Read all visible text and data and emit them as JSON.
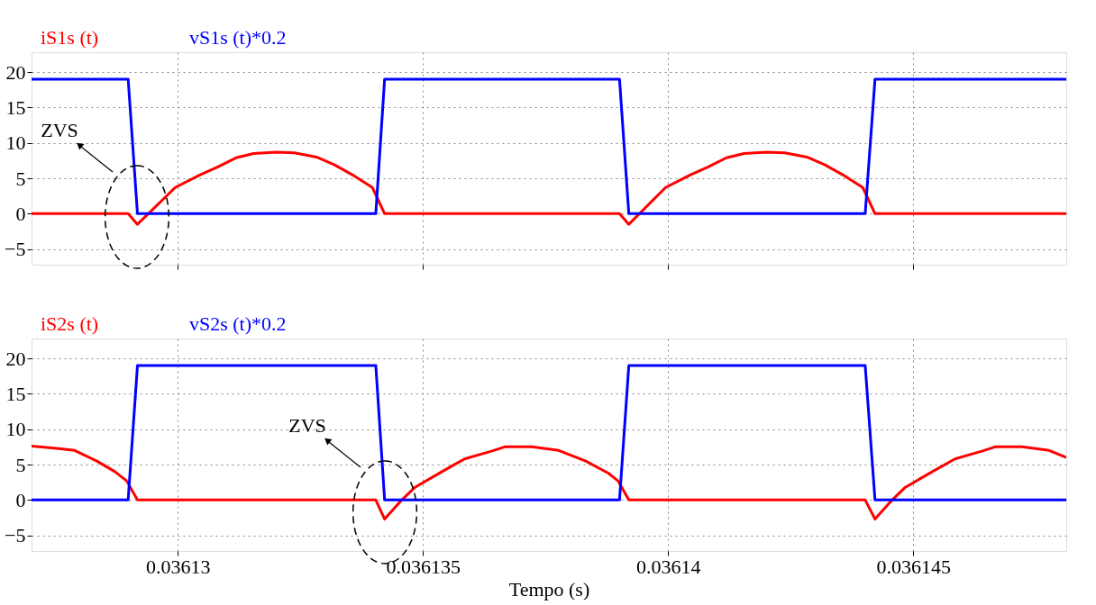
{
  "chart_data": [
    {
      "type": "line",
      "xlim": [
        0.03612702,
        0.03614812
      ],
      "ylim": [
        -7.2,
        22.8
      ],
      "xticks": [
        0.03613,
        0.036135,
        0.03614,
        0.036145
      ],
      "yticks": [
        -5,
        0,
        5,
        10,
        15,
        20
      ],
      "grid": true,
      "tick_labels": "y",
      "line_style": "solid",
      "series": [
        {
          "name": "iS1s (t)",
          "color": "#ff0000",
          "x": [
            0.03612702,
            0.03612899,
            0.03612918,
            0.03612995,
            0.03613046,
            0.03613082,
            0.03613119,
            0.03613155,
            0.03613201,
            0.03613238,
            0.03613283,
            0.0361332,
            0.03613356,
            0.03613397,
            0.03613422,
            0.03613901,
            0.0361392,
            0.03613995,
            0.03614046,
            0.03614082,
            0.03614119,
            0.03614155,
            0.03614201,
            0.03614238,
            0.03614283,
            0.0361432,
            0.03614356,
            0.03614397,
            0.03614422,
            0.03614812
          ],
          "values": [
            0,
            0,
            -1.5,
            3.7,
            5.5,
            6.6,
            7.9,
            8.5,
            8.7,
            8.6,
            8.0,
            6.9,
            5.5,
            3.7,
            0,
            0,
            -1.5,
            3.7,
            5.5,
            6.6,
            7.9,
            8.5,
            8.7,
            8.6,
            8.0,
            6.9,
            5.5,
            3.7,
            0,
            0
          ]
        },
        {
          "name": "vS1s (t)*0.2",
          "color": "#0000ff",
          "x": [
            0.03612702,
            0.03612899,
            0.03612918,
            0.03613404,
            0.03613422,
            0.03613901,
            0.0361392,
            0.03614402,
            0.03614422,
            0.03614812
          ],
          "values": [
            19,
            19,
            0,
            0,
            19,
            19,
            0,
            0,
            19,
            19
          ]
        }
      ],
      "annotations": [
        "ZVS"
      ]
    },
    {
      "type": "line",
      "xlabel": "Tempo (s)",
      "xlim": [
        0.03612702,
        0.03614812
      ],
      "ylim": [
        -7.2,
        22.8
      ],
      "xticks": [
        0.03613,
        0.036135,
        0.03614,
        0.036145
      ],
      "yticks": [
        -5,
        0,
        5,
        10,
        15,
        20
      ],
      "grid": true,
      "line_style": "solid",
      "series": [
        {
          "name": "iS2s (t)",
          "color": "#ff0000",
          "x": [
            0.03612702,
            0.03612753,
            0.0361279,
            0.03612835,
            0.03612872,
            0.03612896,
            0.03612918,
            0.03613404,
            0.03613422,
            0.03613457,
            0.03613484,
            0.03613539,
            0.03613585,
            0.0361364,
            0.03613667,
            0.03613722,
            0.03613777,
            0.03613832,
            0.03613878,
            0.03613898,
            0.0361392,
            0.03614402,
            0.03614422,
            0.03614457,
            0.03614484,
            0.03614539,
            0.03614585,
            0.0361464,
            0.03614667,
            0.03614722,
            0.03614777,
            0.03614812
          ],
          "values": [
            7.6,
            7.3,
            7.0,
            5.5,
            4.0,
            2.7,
            0,
            0,
            -2.7,
            0,
            1.8,
            4.0,
            5.8,
            6.9,
            7.5,
            7.5,
            7.0,
            5.5,
            3.8,
            2.7,
            0,
            0,
            -2.7,
            0,
            1.8,
            4.0,
            5.8,
            6.9,
            7.5,
            7.5,
            7.0,
            6.0
          ]
        },
        {
          "name": "vS2s (t)*0.2",
          "color": "#0000ff",
          "x": [
            0.03612702,
            0.03612899,
            0.03612918,
            0.03613404,
            0.03613422,
            0.03613901,
            0.0361392,
            0.03614402,
            0.03614422,
            0.03614812
          ],
          "values": [
            0,
            0,
            19,
            19,
            0,
            0,
            19,
            19,
            0,
            0
          ]
        }
      ],
      "annotations": [
        "ZVS"
      ]
    }
  ]
}
